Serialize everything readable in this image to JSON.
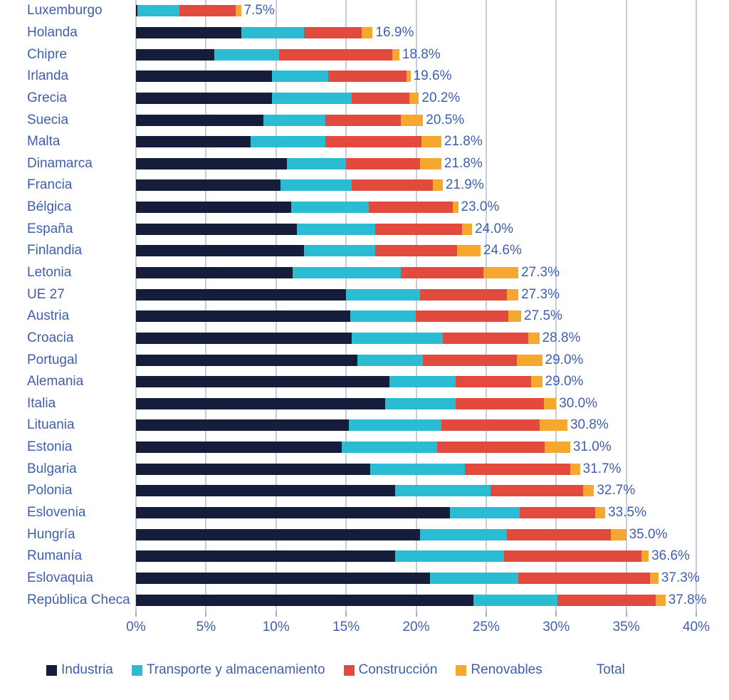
{
  "chart_data": {
    "type": "bar",
    "orientation": "horizontal",
    "stacked": true,
    "grid": true,
    "legend_position": "bottom",
    "x_axis": {
      "min": 0,
      "max": 40,
      "tick_labels": [
        "0%",
        "5%",
        "10%",
        "15%",
        "20%",
        "25%",
        "30%",
        "35%",
        "40%"
      ],
      "tick_values": [
        0,
        5,
        10,
        15,
        20,
        25,
        30,
        35,
        40
      ]
    },
    "categories": [
      "Luxemburgo",
      "Holanda",
      "Chipre",
      "Irlanda",
      "Grecia",
      "Suecia",
      "Malta",
      "Dinamarca",
      "Francia",
      "Bélgica",
      "España",
      "Finlandia",
      "Letonia",
      "UE 27",
      "Austria",
      "Croacia",
      "Portugal",
      "Alemania",
      "Italia",
      "Lituania",
      "Estonia",
      "Bulgaria",
      "Polonia",
      "Eslovenia",
      "Hungría",
      "Rumanía",
      "Eslovaquia",
      "República Checa"
    ],
    "series": [
      {
        "name": "Industria",
        "color": "#161d3a",
        "values": [
          0.1,
          7.5,
          5.6,
          9.7,
          9.7,
          9.1,
          8.2,
          10.8,
          10.3,
          11.1,
          11.5,
          12.0,
          11.2,
          15.0,
          15.3,
          15.4,
          15.8,
          18.1,
          17.8,
          15.2,
          14.7,
          16.7,
          18.5,
          22.4,
          20.3,
          18.5,
          21.0,
          24.1
        ]
      },
      {
        "name": "Transporte y almacenamiento",
        "color": "#2abcd3",
        "values": [
          3.0,
          4.5,
          4.6,
          4.0,
          5.7,
          4.4,
          5.3,
          4.2,
          5.1,
          5.5,
          5.6,
          5.1,
          7.7,
          5.3,
          4.7,
          6.5,
          4.7,
          4.7,
          5.0,
          6.6,
          6.8,
          6.8,
          6.8,
          5.0,
          6.2,
          7.8,
          6.3,
          6.0
        ]
      },
      {
        "name": "Construcción",
        "color": "#e24a3e",
        "values": [
          4.0,
          4.1,
          8.1,
          5.6,
          4.1,
          5.4,
          6.9,
          5.3,
          5.8,
          6.0,
          6.2,
          5.8,
          5.9,
          6.2,
          6.6,
          6.1,
          6.7,
          5.4,
          6.3,
          7.0,
          7.7,
          7.5,
          6.6,
          5.4,
          7.4,
          9.8,
          9.4,
          7.0
        ]
      },
      {
        "name": "Renovables",
        "color": "#f5a72e",
        "values": [
          0.4,
          0.8,
          0.5,
          0.3,
          0.7,
          1.6,
          1.4,
          1.5,
          0.7,
          0.4,
          0.7,
          1.7,
          2.5,
          0.8,
          0.9,
          0.8,
          1.8,
          0.8,
          0.9,
          2.0,
          1.8,
          0.7,
          0.8,
          0.7,
          1.1,
          0.5,
          0.6,
          0.7
        ]
      }
    ],
    "total_labels": [
      "7.5%",
      "16.9%",
      "18.8%",
      "19.6%",
      "20.2%",
      "20.5%",
      "21.8%",
      "21.8%",
      "21.9%",
      "23.0%",
      "24.0%",
      "24.6%",
      "27.3%",
      "27.3%",
      "27.5%",
      "28.8%",
      "29.0%",
      "29.0%",
      "30.0%",
      "30.8%",
      "31.0%",
      "31.7%",
      "32.7%",
      "33.5%",
      "35.0%",
      "36.6%",
      "37.3%",
      "37.8%"
    ],
    "legend": {
      "items": [
        "Industria",
        "Transporte y almacenamiento",
        "Construcción",
        "Renovables"
      ],
      "total_label": "Total"
    },
    "colors": {
      "label_text": "#3f5fae",
      "gridline": "#c7cbdd",
      "tick": "#a9aec5"
    }
  }
}
